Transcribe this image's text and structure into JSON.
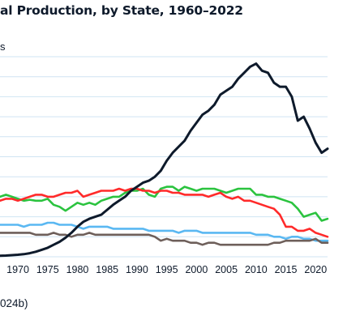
{
  "chart_data": {
    "type": "line",
    "title": "al Production, by State, 1960–2022",
    "ylabel": "s",
    "source": "024b)",
    "xlim": [
      1967,
      2022
    ],
    "ylim": [
      0,
      100
    ],
    "grid": true,
    "x_ticks": [
      1970,
      1975,
      1980,
      1985,
      1990,
      1995,
      2000,
      2005,
      2010,
      2015,
      2020
    ],
    "x": [
      1967,
      1968,
      1969,
      1970,
      1971,
      1972,
      1973,
      1974,
      1975,
      1976,
      1977,
      1978,
      1979,
      1980,
      1981,
      1982,
      1983,
      1984,
      1985,
      1986,
      1987,
      1988,
      1989,
      1990,
      1991,
      1992,
      1993,
      1994,
      1995,
      1996,
      1997,
      1998,
      1999,
      2000,
      2001,
      2002,
      2003,
      2004,
      2005,
      2006,
      2007,
      2008,
      2009,
      2010,
      2011,
      2012,
      2013,
      2014,
      2015,
      2016,
      2017,
      2018,
      2019,
      2020,
      2021,
      2022
    ],
    "series": [
      {
        "color": "#0e1a2b",
        "values": [
          0.5,
          0.6,
          0.8,
          1,
          1.3,
          1.8,
          2.5,
          3.5,
          4.5,
          6,
          7.5,
          9.5,
          12,
          15,
          17.5,
          19,
          20,
          21,
          23.5,
          26,
          28,
          30,
          33,
          35,
          37,
          38,
          40,
          43,
          48,
          52,
          55,
          58,
          63,
          67,
          71,
          73,
          76,
          81,
          83,
          85,
          89,
          92,
          95,
          96.5,
          93,
          92,
          87,
          85,
          85,
          80,
          68,
          70,
          64,
          57,
          52,
          54
        ]
      },
      {
        "color": "#2bc33f",
        "values": [
          30,
          31,
          30,
          29,
          28,
          28.5,
          28,
          28,
          29,
          26,
          25,
          23,
          25,
          27,
          26,
          27,
          26,
          28,
          29,
          30,
          30,
          32,
          33,
          33,
          34,
          31,
          30,
          34,
          35,
          35,
          33,
          35,
          34,
          33,
          34,
          34,
          34,
          33,
          32,
          33,
          34,
          34,
          34,
          31,
          31,
          30,
          30,
          29,
          28,
          27,
          24,
          20,
          21,
          22,
          18,
          19
        ]
      },
      {
        "color": "#ff2a2a",
        "values": [
          28,
          29,
          29,
          28,
          29,
          30,
          31,
          31,
          30,
          30,
          31,
          32,
          32,
          33,
          30,
          31,
          32,
          33,
          33,
          33,
          34,
          33,
          34,
          34,
          33,
          33,
          32,
          33,
          33,
          32,
          32,
          31,
          31,
          31,
          31,
          30,
          31,
          32,
          30,
          29,
          30,
          28,
          28,
          27,
          26,
          25,
          24,
          21,
          15,
          15,
          13,
          13,
          14,
          12,
          11,
          10
        ]
      },
      {
        "color": "#5ab8f2",
        "values": [
          16,
          16,
          16,
          16,
          15,
          16,
          16,
          16,
          17,
          17,
          16,
          16,
          16,
          15,
          14,
          15,
          15,
          15,
          15,
          14,
          14,
          14,
          14,
          14,
          14,
          13,
          13,
          13,
          13,
          13,
          12,
          13,
          13,
          13,
          12,
          12,
          12,
          12,
          12,
          12,
          12,
          12,
          12,
          11,
          11,
          11,
          10,
          10,
          9,
          10,
          10,
          9,
          9,
          8,
          8,
          8
        ]
      },
      {
        "color": "#6e5f5a",
        "values": [
          12,
          12,
          12,
          12,
          12,
          12,
          11,
          11,
          11,
          12,
          11,
          11,
          10,
          11,
          11,
          12,
          11,
          11,
          11,
          11,
          11,
          11,
          11,
          11,
          11,
          11,
          10,
          8,
          9,
          8,
          8,
          8,
          7,
          7,
          6,
          7,
          7,
          6,
          6,
          6,
          6,
          6,
          6,
          6,
          6,
          6,
          7,
          7,
          8,
          8,
          8,
          8,
          8,
          9,
          7,
          7
        ]
      }
    ]
  }
}
